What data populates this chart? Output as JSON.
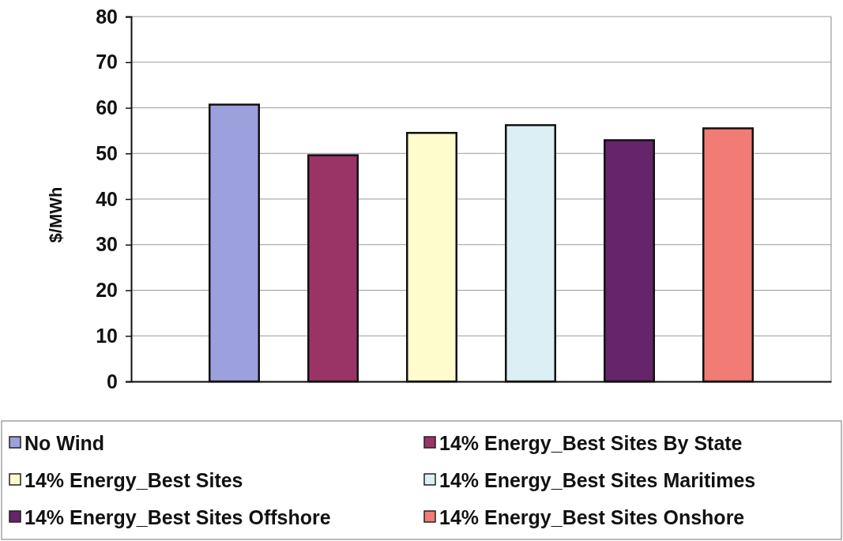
{
  "chart_data": {
    "type": "bar",
    "ylabel": "$/MWh",
    "categories": [
      null
    ],
    "series": [
      {
        "name": "No Wind",
        "color": "#9ca1de",
        "values": [
          60.7
        ]
      },
      {
        "name": "14% Energy_Best Sites By State",
        "color": "#9b3466",
        "values": [
          49.6
        ]
      },
      {
        "name": "14% Energy_Best Sites",
        "color": "#fefbcc",
        "values": [
          54.5
        ]
      },
      {
        "name": "14% Energy_Best Sites Maritimes",
        "color": "#dceff4",
        "values": [
          56.2
        ]
      },
      {
        "name": "14% Energy_Best Sites Offshore",
        "color": "#66246a",
        "values": [
          52.9
        ]
      },
      {
        "name": "14% Energy_Best Sites Onshore",
        "color": "#f07c75",
        "values": [
          55.5
        ]
      }
    ],
    "ylim": [
      0,
      80
    ],
    "yticks": [
      0,
      10,
      20,
      30,
      40,
      50,
      60,
      70,
      80
    ],
    "grid": "y",
    "legend": "bottom"
  }
}
